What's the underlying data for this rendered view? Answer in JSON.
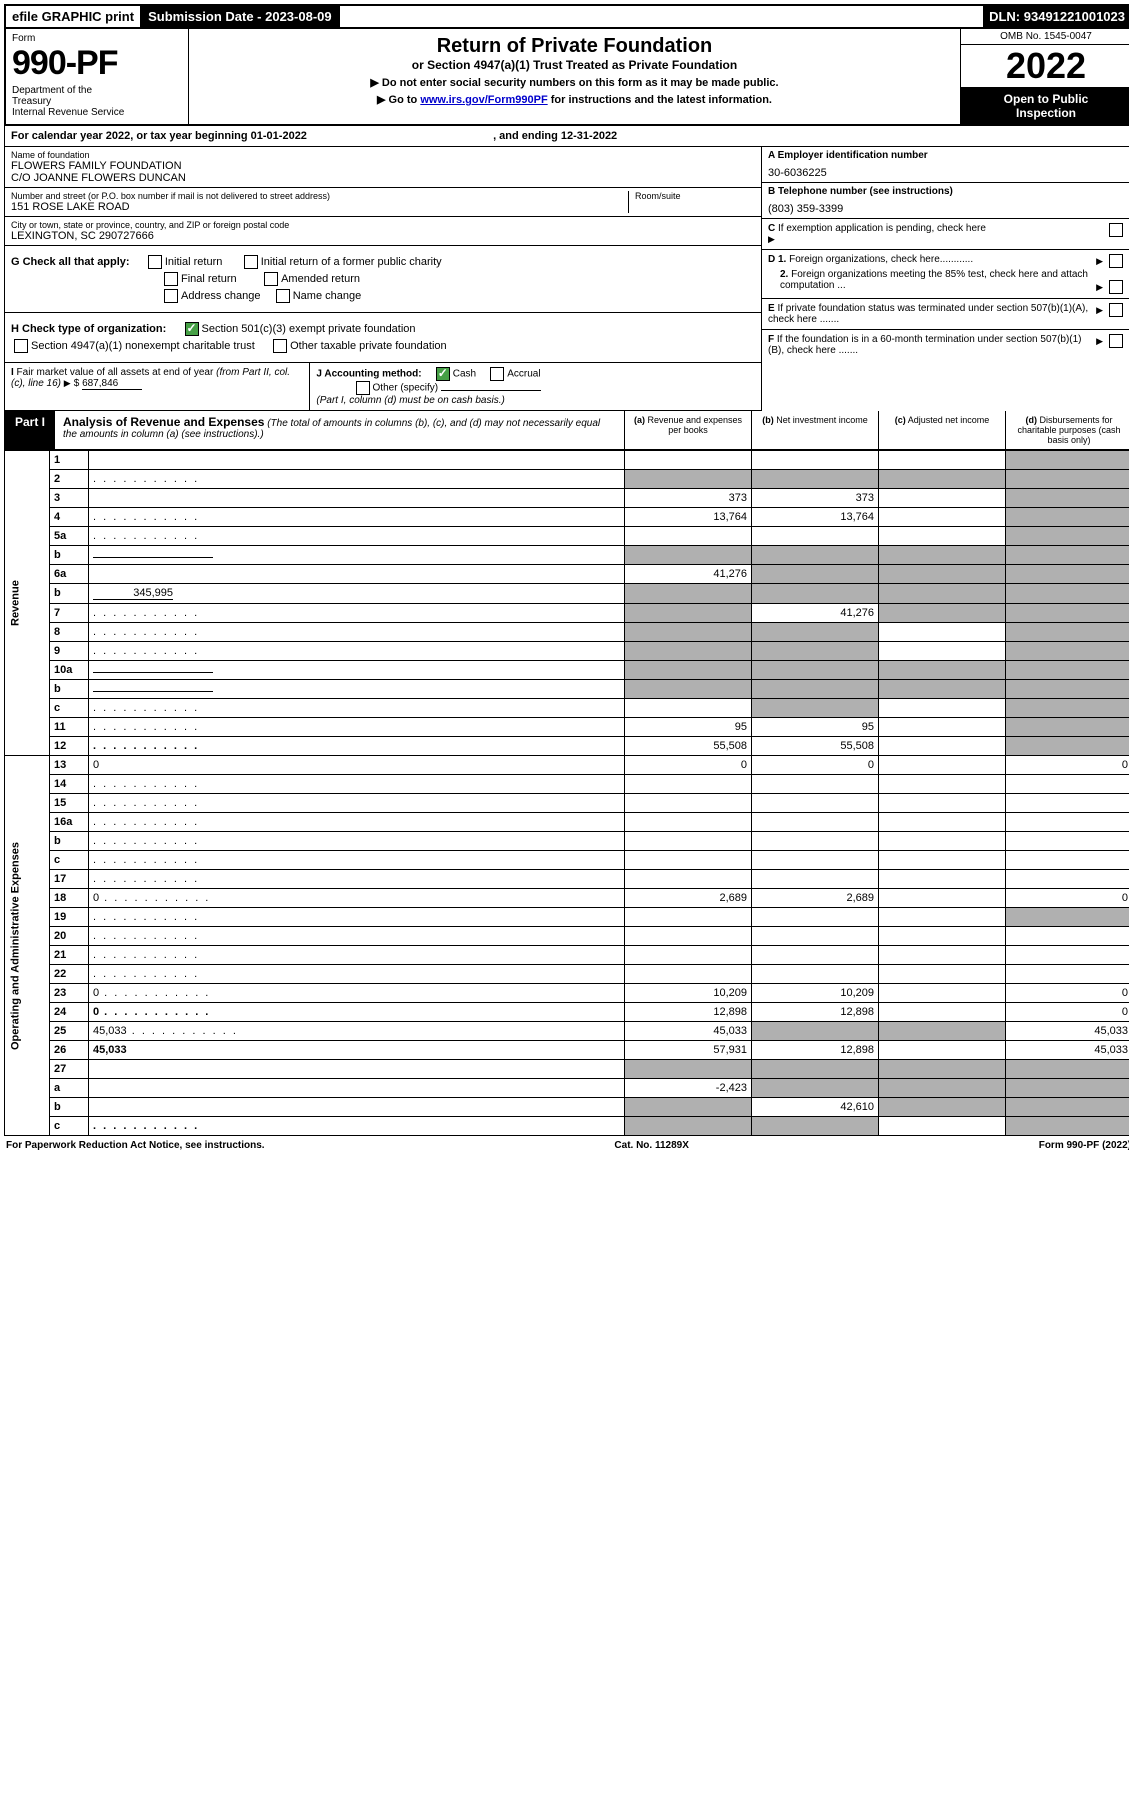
{
  "top": {
    "efile": "efile GRAPHIC print",
    "subdate_label": "Submission Date - ",
    "subdate": "2023-08-09",
    "dln_label": "DLN: ",
    "dln": "93491221001023"
  },
  "header": {
    "form_label": "Form",
    "form_number": "990-PF",
    "dept": "Department of the Treasury\nInternal Revenue Service",
    "title": "Return of Private Foundation",
    "subtitle": "or Section 4947(a)(1) Trust Treated as Private Foundation",
    "note1": "▶ Do not enter social security numbers on this form as it may be made public.",
    "note2_pre": "▶ Go to ",
    "note2_link": "www.irs.gov/Form990PF",
    "note2_post": " for instructions and the latest information.",
    "omb": "OMB No. 1545-0047",
    "year": "2022",
    "open": "Open to Public Inspection"
  },
  "cal_year": {
    "prefix": "For calendar year 2022, or tax year beginning ",
    "begin": "01-01-2022",
    "mid": " , and ending ",
    "end": "12-31-2022"
  },
  "foundation": {
    "name_label": "Name of foundation",
    "name1": "FLOWERS FAMILY FOUNDATION",
    "name2": "C/O JOANNE FLOWERS DUNCAN",
    "addr_label": "Number and street (or P.O. box number if mail is not delivered to street address)",
    "room_label": "Room/suite",
    "addr": "151 ROSE LAKE ROAD",
    "city_label": "City or town, state or province, country, and ZIP or foreign postal code",
    "city": "LEXINGTON, SC  290727666"
  },
  "right_info": {
    "a_label": "A Employer identification number",
    "a_val": "30-6036225",
    "b_label": "B Telephone number (see instructions)",
    "b_val": "(803) 359-3399",
    "c_label": "C If exemption application is pending, check here",
    "d1": "D 1. Foreign organizations, check here............",
    "d2": "2. Foreign organizations meeting the 85% test, check here and attach computation ...",
    "e": "E  If private foundation status was terminated under section 507(b)(1)(A), check here .......",
    "f": "F  If the foundation is in a 60-month termination under section 507(b)(1)(B), check here ......."
  },
  "g": {
    "label": "G Check all that apply:",
    "opts": [
      "Initial return",
      "Final return",
      "Address change",
      "Initial return of a former public charity",
      "Amended return",
      "Name change"
    ]
  },
  "h": {
    "label": "H Check type of organization:",
    "opt1": "Section 501(c)(3) exempt private foundation",
    "opt2": "Section 4947(a)(1) nonexempt charitable trust",
    "opt3": "Other taxable private foundation"
  },
  "i": {
    "label": "I Fair market value of all assets at end of year (from Part II, col. (c), line 16)",
    "val": "687,846"
  },
  "j": {
    "label": "J Accounting method:",
    "cash": "Cash",
    "accrual": "Accrual",
    "other": "Other (specify)",
    "note": "(Part I, column (d) must be on cash basis.)"
  },
  "part1": {
    "label": "Part I",
    "title": "Analysis of Revenue and Expenses",
    "title_note": "(The total of amounts in columns (b), (c), and (d) may not necessarily equal the amounts in column (a) (see instructions).)",
    "cols": {
      "a": "(a) Revenue and expenses per books",
      "b": "(b) Net investment income",
      "c": "(c) Adjusted net income",
      "d": "(d) Disbursements for charitable purposes (cash basis only)"
    }
  },
  "sections": {
    "revenue": "Revenue",
    "expenses": "Operating and Administrative Expenses"
  },
  "rows": [
    {
      "n": "1",
      "d": "",
      "a": "",
      "b": "",
      "c": "",
      "grey": [
        "d"
      ]
    },
    {
      "n": "2",
      "d": "",
      "dots": true,
      "a": "",
      "b": "",
      "c": "",
      "grey": [
        "a",
        "b",
        "c",
        "d"
      ],
      "bold_not": true
    },
    {
      "n": "3",
      "d": "",
      "a": "373",
      "b": "373",
      "c": "",
      "grey": [
        "d"
      ]
    },
    {
      "n": "4",
      "d": "",
      "dots": true,
      "a": "13,764",
      "b": "13,764",
      "c": "",
      "grey": [
        "d"
      ]
    },
    {
      "n": "5a",
      "d": "",
      "dots": true,
      "a": "",
      "b": "",
      "c": "",
      "grey": [
        "d"
      ]
    },
    {
      "n": "b",
      "d": "",
      "inline": true,
      "a": "",
      "b": "",
      "c": "",
      "grey": [
        "a",
        "b",
        "c",
        "d"
      ]
    },
    {
      "n": "6a",
      "d": "",
      "a": "41,276",
      "b": "",
      "c": "",
      "grey": [
        "b",
        "c",
        "d"
      ]
    },
    {
      "n": "b",
      "d": "",
      "inline_val": "345,995",
      "a": "",
      "b": "",
      "c": "",
      "grey": [
        "a",
        "b",
        "c",
        "d"
      ]
    },
    {
      "n": "7",
      "d": "",
      "dots": true,
      "a": "",
      "b": "41,276",
      "c": "",
      "grey": [
        "a",
        "c",
        "d"
      ]
    },
    {
      "n": "8",
      "d": "",
      "dots": true,
      "a": "",
      "b": "",
      "c": "",
      "grey": [
        "a",
        "b",
        "d"
      ]
    },
    {
      "n": "9",
      "d": "",
      "dots": true,
      "a": "",
      "b": "",
      "c": "",
      "grey": [
        "a",
        "b",
        "d"
      ]
    },
    {
      "n": "10a",
      "d": "",
      "inline": true,
      "a": "",
      "b": "",
      "c": "",
      "grey": [
        "a",
        "b",
        "c",
        "d"
      ]
    },
    {
      "n": "b",
      "d": "",
      "dots": true,
      "inline": true,
      "a": "",
      "b": "",
      "c": "",
      "grey": [
        "a",
        "b",
        "c",
        "d"
      ]
    },
    {
      "n": "c",
      "d": "",
      "dots": true,
      "a": "",
      "b": "",
      "c": "",
      "grey": [
        "b",
        "d"
      ]
    },
    {
      "n": "11",
      "d": "",
      "dots": true,
      "a": "95",
      "b": "95",
      "c": "",
      "grey": [
        "d"
      ]
    },
    {
      "n": "12",
      "d": "",
      "dots": true,
      "bold": true,
      "a": "55,508",
      "b": "55,508",
      "c": "",
      "grey": [
        "d"
      ]
    },
    {
      "n": "13",
      "d": "0",
      "a": "0",
      "b": "0",
      "c": "",
      "sec": "exp"
    },
    {
      "n": "14",
      "d": "",
      "dots": true,
      "a": "",
      "b": "",
      "c": "",
      "sec": "exp"
    },
    {
      "n": "15",
      "d": "",
      "dots": true,
      "a": "",
      "b": "",
      "c": "",
      "sec": "exp"
    },
    {
      "n": "16a",
      "d": "",
      "dots": true,
      "a": "",
      "b": "",
      "c": "",
      "sec": "exp"
    },
    {
      "n": "b",
      "d": "",
      "dots": true,
      "a": "",
      "b": "",
      "c": "",
      "sec": "exp"
    },
    {
      "n": "c",
      "d": "",
      "dots": true,
      "a": "",
      "b": "",
      "c": "",
      "sec": "exp"
    },
    {
      "n": "17",
      "d": "",
      "dots": true,
      "a": "",
      "b": "",
      "c": "",
      "sec": "exp"
    },
    {
      "n": "18",
      "d": "0",
      "dots": true,
      "a": "2,689",
      "b": "2,689",
      "c": "",
      "sec": "exp"
    },
    {
      "n": "19",
      "d": "",
      "dots": true,
      "a": "",
      "b": "",
      "c": "",
      "grey": [
        "d"
      ],
      "sec": "exp"
    },
    {
      "n": "20",
      "d": "",
      "dots": true,
      "a": "",
      "b": "",
      "c": "",
      "sec": "exp"
    },
    {
      "n": "21",
      "d": "",
      "dots": true,
      "a": "",
      "b": "",
      "c": "",
      "sec": "exp"
    },
    {
      "n": "22",
      "d": "",
      "dots": true,
      "a": "",
      "b": "",
      "c": "",
      "sec": "exp"
    },
    {
      "n": "23",
      "d": "0",
      "dots": true,
      "a": "10,209",
      "b": "10,209",
      "c": "",
      "sec": "exp"
    },
    {
      "n": "24",
      "d": "0",
      "dots": true,
      "bold": true,
      "a": "12,898",
      "b": "12,898",
      "c": "",
      "sec": "exp"
    },
    {
      "n": "25",
      "d": "45,033",
      "dots": true,
      "a": "45,033",
      "b": "",
      "c": "",
      "grey": [
        "b",
        "c"
      ],
      "sec": "exp"
    },
    {
      "n": "26",
      "d": "45,033",
      "bold": true,
      "a": "57,931",
      "b": "12,898",
      "c": "",
      "sec": "exp"
    },
    {
      "n": "27",
      "d": "",
      "a": "",
      "b": "",
      "c": "",
      "grey": [
        "a",
        "b",
        "c",
        "d"
      ],
      "sec": "bot"
    },
    {
      "n": "a",
      "d": "",
      "bold": true,
      "a": "-2,423",
      "b": "",
      "c": "",
      "grey": [
        "b",
        "c",
        "d"
      ],
      "sec": "bot"
    },
    {
      "n": "b",
      "d": "",
      "bold": true,
      "a": "",
      "b": "42,610",
      "c": "",
      "grey": [
        "a",
        "c",
        "d"
      ],
      "sec": "bot"
    },
    {
      "n": "c",
      "d": "",
      "dots": true,
      "bold": true,
      "a": "",
      "b": "",
      "c": "",
      "grey": [
        "a",
        "b",
        "d"
      ],
      "sec": "bot"
    }
  ],
  "footer": {
    "left": "For Paperwork Reduction Act Notice, see instructions.",
    "mid": "Cat. No. 11289X",
    "right": "Form 990-PF (2022)"
  }
}
